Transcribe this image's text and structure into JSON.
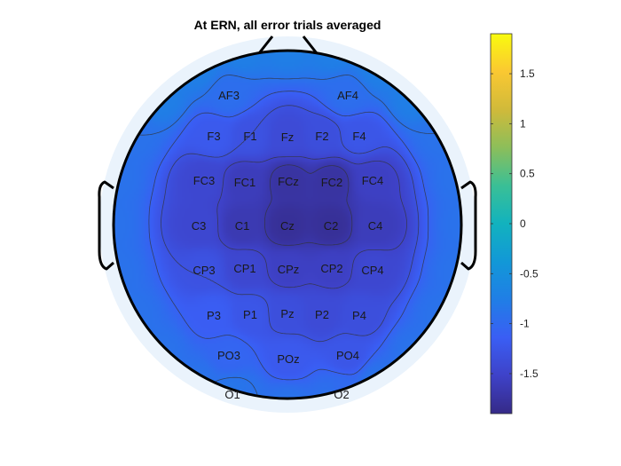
{
  "chart_data": {
    "type": "heatmap",
    "subtype": "topographic-scalp-map",
    "title": "At ERN, all error trials averaged",
    "colormap": "parula",
    "clim": [
      -1.9,
      1.9
    ],
    "colorbar": {
      "location": "right",
      "ticks": [
        1.5,
        1,
        0.5,
        0,
        -0.5,
        -1,
        -1.5
      ],
      "tick_labels": [
        "1.5",
        "1",
        "0.5",
        "0",
        "-0.5",
        "-1",
        "-1.5"
      ]
    },
    "electrodes": [
      {
        "label": "AF3",
        "value": -0.95
      },
      {
        "label": "AF4",
        "value": -0.95
      },
      {
        "label": "F3",
        "value": -1.2
      },
      {
        "label": "F1",
        "value": -1.3
      },
      {
        "label": "Fz",
        "value": -1.4
      },
      {
        "label": "F2",
        "value": -1.35
      },
      {
        "label": "F4",
        "value": -1.25
      },
      {
        "label": "FC3",
        "value": -1.45
      },
      {
        "label": "FC1",
        "value": -1.6
      },
      {
        "label": "FCz",
        "value": -1.75
      },
      {
        "label": "FC2",
        "value": -1.75
      },
      {
        "label": "FC4",
        "value": -1.55
      },
      {
        "label": "C3",
        "value": -1.45
      },
      {
        "label": "C1",
        "value": -1.65
      },
      {
        "label": "Cz",
        "value": -1.8
      },
      {
        "label": "C2",
        "value": -1.8
      },
      {
        "label": "C4",
        "value": -1.6
      },
      {
        "label": "CP3",
        "value": -1.3
      },
      {
        "label": "CP1",
        "value": -1.45
      },
      {
        "label": "CPz",
        "value": -1.55
      },
      {
        "label": "CP2",
        "value": -1.55
      },
      {
        "label": "CP4",
        "value": -1.45
      },
      {
        "label": "P3",
        "value": -1.15
      },
      {
        "label": "P1",
        "value": -1.25
      },
      {
        "label": "Pz",
        "value": -1.35
      },
      {
        "label": "P2",
        "value": -1.4
      },
      {
        "label": "P4",
        "value": -1.35
      },
      {
        "label": "PO3",
        "value": -1.05
      },
      {
        "label": "POz",
        "value": -1.2
      },
      {
        "label": "PO4",
        "value": -1.25
      },
      {
        "label": "O1",
        "value": -0.85
      },
      {
        "label": "O2",
        "value": -1.0
      }
    ],
    "contour_levels": [
      -1.7,
      -1.5,
      -1.3,
      -1.1,
      -0.9
    ],
    "grid": false
  }
}
